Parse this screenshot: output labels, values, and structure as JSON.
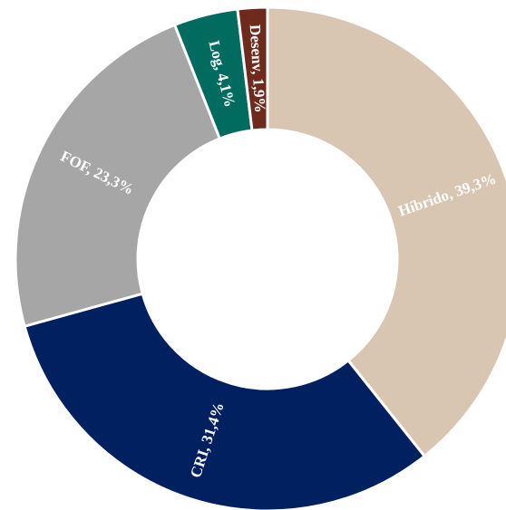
{
  "chart_data": {
    "type": "donut",
    "values": [
      39.3,
      31.4,
      23.3,
      4.1,
      1.9
    ],
    "value_labels": [
      "Híbrido, 39,3%",
      "CRI, 31,4%",
      "FOF, 23,3%",
      "Log, 4,1%",
      "Desenv, 1,9%"
    ],
    "colors": [
      "#d8c6b3",
      "#002060",
      "#a6a6a6",
      "#006b5e",
      "#6e2a1c"
    ]
  }
}
